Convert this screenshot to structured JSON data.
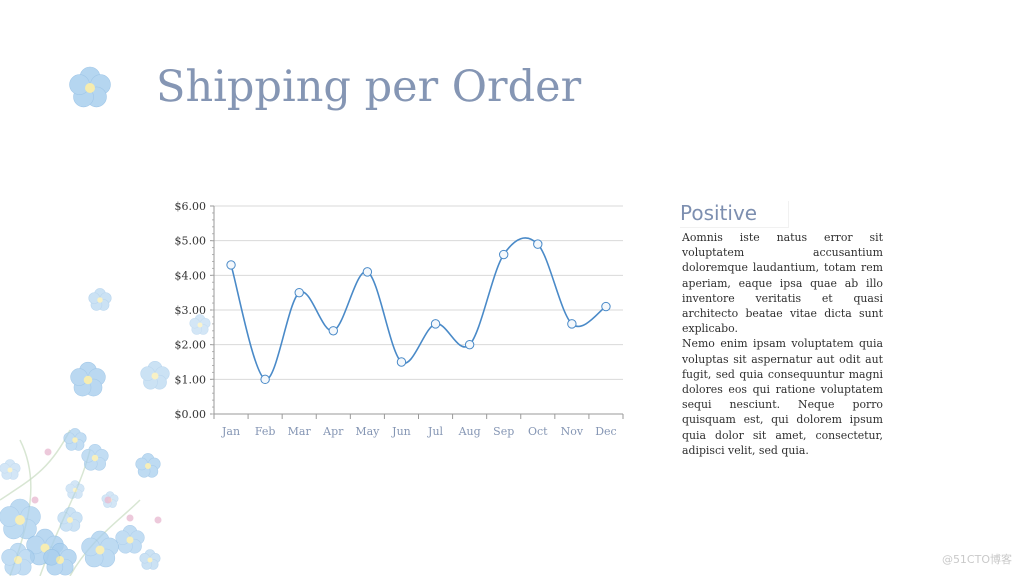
{
  "slide": {
    "title": "Shipping per Order",
    "side_heading": "Positive",
    "paragraphs": [
      "Aomnis iste natus error sit voluptatem accusantium doloremque laudantium, totam rem aperiam, eaque ipsa quae ab illo inventore veritatis et quasi architecto beatae vitae dicta sunt explicabo.",
      "Nemo enim ipsam voluptatem quia voluptas sit aspernatur aut odit aut fugit, sed quia consequuntur magni dolores eos qui ratione voluptatem sequi nesciunt. Neque porro quisquam est, qui dolorem ipsum quia dolor sit amet, consectetur, adipisci velit, sed quia."
    ],
    "watermark": "@51CTO博客"
  },
  "colors": {
    "title": "#8596b4",
    "line": "#4a8ac8",
    "marker_fill": "#f4f8fc",
    "marker_stroke": "#4a8ac8",
    "axis_text": "#8596b4",
    "grid": "#d9d9d9",
    "flower": "#a9cfee",
    "flower_center": "#f5e9a0"
  },
  "chart_data": {
    "type": "line",
    "title": "",
    "xlabel": "",
    "ylabel": "",
    "categories": [
      "Jan",
      "Feb",
      "Mar",
      "Apr",
      "May",
      "Jun",
      "Jul",
      "Aug",
      "Sep",
      "Oct",
      "Nov",
      "Dec"
    ],
    "series": [
      {
        "name": "Shipping per Order",
        "values": [
          4.3,
          1.0,
          3.5,
          2.4,
          4.1,
          1.5,
          2.6,
          2.0,
          4.6,
          4.9,
          2.6,
          3.1
        ]
      }
    ],
    "ylim": [
      0,
      6
    ],
    "yticks": [
      0,
      1,
      2,
      3,
      4,
      5,
      6
    ],
    "ytick_labels": [
      "$0.00",
      "$1.00",
      "$2.00",
      "$3.00",
      "$4.00",
      "$5.00",
      "$6.00"
    ],
    "smooth": true,
    "grid": true,
    "legend": "none"
  }
}
